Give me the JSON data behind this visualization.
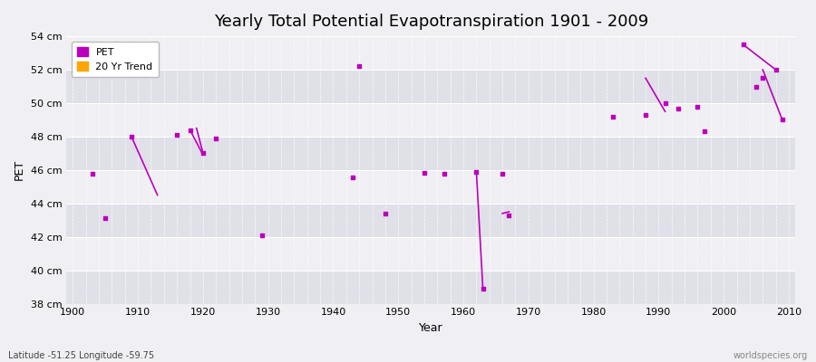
{
  "title": "Yearly Total Potential Evapotranspiration 1901 - 2009",
  "xlabel": "Year",
  "ylabel": "PET",
  "ylim": [
    38,
    54
  ],
  "xlim": [
    1899,
    2011
  ],
  "yticks": [
    38,
    40,
    42,
    44,
    46,
    48,
    50,
    52,
    54
  ],
  "ytick_labels": [
    "38 cm",
    "40 cm",
    "42 cm",
    "44 cm",
    "46 cm",
    "48 cm",
    "50 cm",
    "52 cm",
    "54 cm"
  ],
  "bg_light": "#f0f0f4",
  "bg_dark": "#e0e0e8",
  "pet_color": "#bb00bb",
  "trend_color": "#bb00bb",
  "pet_data": [
    [
      1903,
      45.8
    ],
    [
      1905,
      43.1
    ],
    [
      1909,
      48.0
    ],
    [
      1916,
      48.1
    ],
    [
      1918,
      48.4
    ],
    [
      1920,
      47.0
    ],
    [
      1922,
      47.9
    ],
    [
      1929,
      42.1
    ],
    [
      1943,
      45.55
    ],
    [
      1944,
      52.2
    ],
    [
      1948,
      43.4
    ],
    [
      1954,
      45.85
    ],
    [
      1957,
      45.8
    ],
    [
      1962,
      45.9
    ],
    [
      1963,
      38.9
    ],
    [
      1966,
      45.8
    ],
    [
      1967,
      43.3
    ],
    [
      1983,
      49.2
    ],
    [
      1988,
      49.3
    ],
    [
      1991,
      50.0
    ],
    [
      1993,
      49.7
    ],
    [
      1996,
      49.8
    ],
    [
      1997,
      48.3
    ],
    [
      2003,
      53.5
    ],
    [
      2005,
      51.0
    ],
    [
      2006,
      51.5
    ],
    [
      2008,
      52.0
    ],
    [
      2009,
      49.0
    ]
  ],
  "trend_segments": [
    [
      [
        1909,
        48.0
      ],
      [
        1913,
        44.5
      ]
    ],
    [
      [
        1918,
        48.4
      ],
      [
        1920,
        46.9
      ]
    ],
    [
      [
        1919,
        48.5
      ],
      [
        1920,
        47.0
      ]
    ],
    [
      [
        1962,
        45.9
      ],
      [
        1963,
        38.9
      ]
    ],
    [
      [
        1966,
        43.4
      ],
      [
        1967,
        43.5
      ]
    ],
    [
      [
        1988,
        51.5
      ],
      [
        1991,
        49.5
      ]
    ],
    [
      [
        2003,
        53.5
      ],
      [
        2008,
        52.0
      ]
    ],
    [
      [
        2006,
        52.0
      ],
      [
        2009,
        49.0
      ]
    ]
  ],
  "footer_left": "Latitude -51.25 Longitude -59.75",
  "footer_right": "worldspecies.org",
  "title_fontsize": 13,
  "label_fontsize": 9,
  "tick_fontsize": 8
}
